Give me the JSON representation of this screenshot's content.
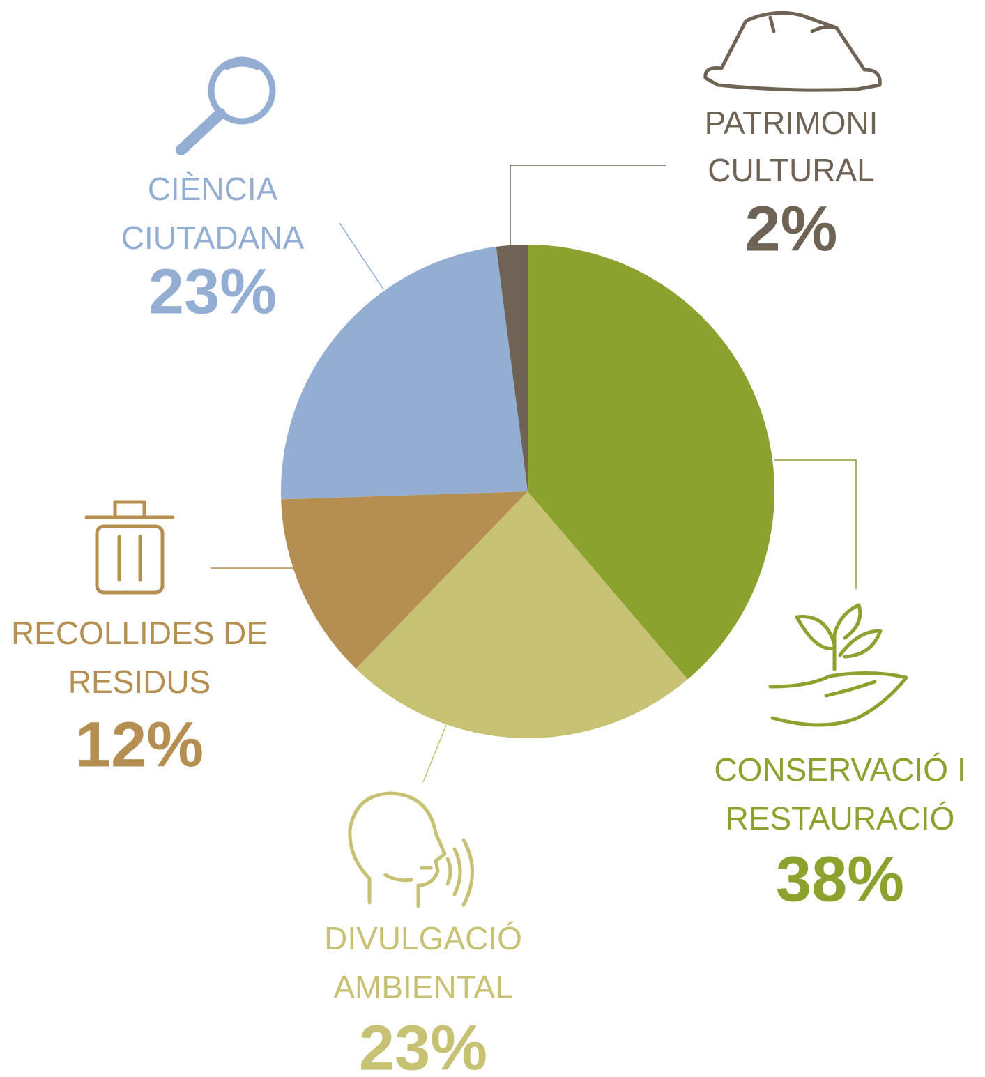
{
  "chart_data": {
    "type": "pie",
    "categories": [
      [
        "CONSERVACIÓ I",
        "RESTAURACIÓ"
      ],
      [
        "DIVULGACIÓ",
        "AMBIENTAL"
      ],
      [
        "RECOLLIDES DE",
        "RESIDUS"
      ],
      [
        "CIÈNCIA",
        "CIUTADANA"
      ],
      [
        "PATRIMONI",
        "CULTURAL"
      ]
    ],
    "values": [
      38,
      23,
      12,
      23,
      2
    ],
    "value_labels": [
      "38%",
      "23%",
      "12%",
      "23%",
      "2%"
    ],
    "colors": [
      "#8ba22f",
      "#c6c173",
      "#b58f52",
      "#94aed3",
      "#6e6354"
    ]
  }
}
